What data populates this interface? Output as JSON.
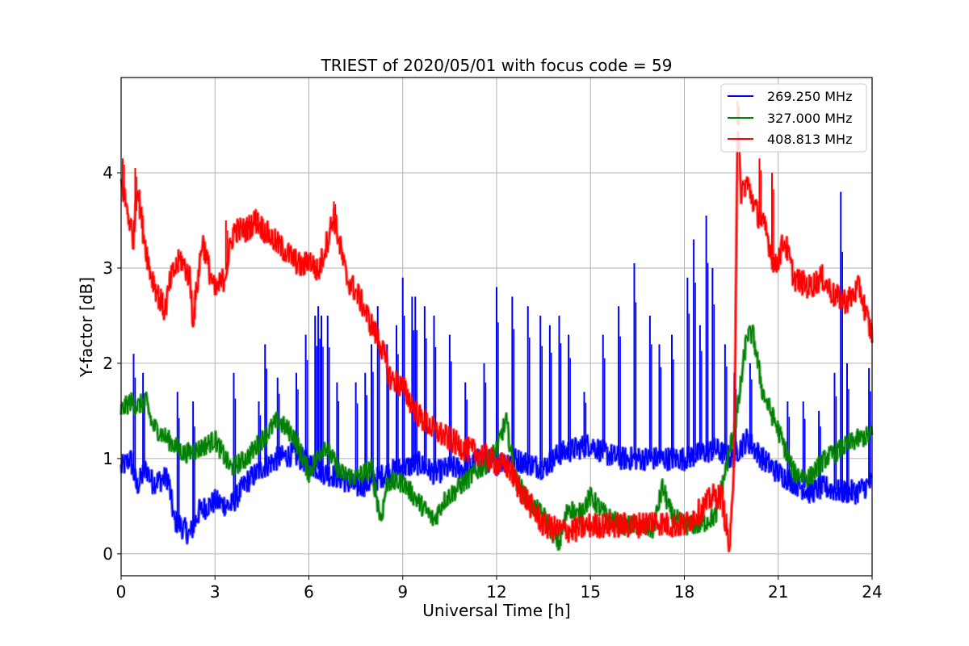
{
  "chart_data": {
    "type": "line",
    "title": "TRIEST of 2020/05/01 with focus code = 59",
    "xlabel": "Universal Time [h]",
    "ylabel": "Y-factor [dB]",
    "xlim": [
      0,
      24
    ],
    "ylim": [
      -0.23,
      5.0
    ],
    "xticks": [
      0,
      3,
      6,
      9,
      12,
      15,
      18,
      21,
      24
    ],
    "yticks": [
      0,
      1,
      2,
      3,
      4
    ],
    "grid": true,
    "legend_position": "top-right",
    "series": [
      {
        "name": "269.250 MHz",
        "color": "#0000ff",
        "x": [
          0,
          0.3,
          0.5,
          0.8,
          1.0,
          1.5,
          1.7,
          1.9,
          2.2,
          2.5,
          3.0,
          3.5,
          4.0,
          4.5,
          5.0,
          5.5,
          6.0,
          6.5,
          7.0,
          7.5,
          8.0,
          8.5,
          9.0,
          9.5,
          10.0,
          10.5,
          11.0,
          11.5,
          12.0,
          12.5,
          13.0,
          13.5,
          14.0,
          14.5,
          15.0,
          15.5,
          16.0,
          16.5,
          17.0,
          17.5,
          18.0,
          18.5,
          19.0,
          19.5,
          20.0,
          20.5,
          21.0,
          21.5,
          22.0,
          22.5,
          23.0,
          23.5,
          24.0
        ],
        "y": [
          0.9,
          1.0,
          0.7,
          0.9,
          0.75,
          0.8,
          0.35,
          0.3,
          0.2,
          0.45,
          0.55,
          0.5,
          0.75,
          0.9,
          1.0,
          1.05,
          0.95,
          0.85,
          0.8,
          0.7,
          0.75,
          0.85,
          0.9,
          0.95,
          0.85,
          0.9,
          0.9,
          1.0,
          0.95,
          1.0,
          0.95,
          0.9,
          1.05,
          1.1,
          1.15,
          1.05,
          1.0,
          1.0,
          1.0,
          1.0,
          1.0,
          1.05,
          1.1,
          1.0,
          1.2,
          1.0,
          0.85,
          0.75,
          0.65,
          0.7,
          0.65,
          0.65,
          0.75
        ],
        "spikes": [
          [
            0.4,
            2.1
          ],
          [
            0.7,
            1.9
          ],
          [
            1.8,
            1.7
          ],
          [
            2.3,
            1.6
          ],
          [
            3.6,
            1.9
          ],
          [
            4.4,
            1.6
          ],
          [
            4.6,
            2.2
          ],
          [
            5.0,
            1.85
          ],
          [
            5.6,
            1.9
          ],
          [
            5.9,
            2.3
          ],
          [
            6.2,
            2.5
          ],
          [
            6.3,
            2.6
          ],
          [
            6.4,
            2.5
          ],
          [
            6.6,
            2.5
          ],
          [
            6.9,
            1.8
          ],
          [
            7.5,
            1.8
          ],
          [
            7.8,
            1.9
          ],
          [
            8.0,
            2.2
          ],
          [
            8.2,
            2.6
          ],
          [
            8.5,
            2.2
          ],
          [
            8.8,
            2.4
          ],
          [
            9.0,
            2.9
          ],
          [
            9.3,
            2.7
          ],
          [
            9.4,
            2.7
          ],
          [
            9.7,
            2.6
          ],
          [
            10.0,
            2.5
          ],
          [
            10.5,
            2.3
          ],
          [
            11.0,
            1.8
          ],
          [
            11.6,
            2.0
          ],
          [
            12.0,
            2.8
          ],
          [
            12.5,
            2.7
          ],
          [
            13.0,
            2.6
          ],
          [
            13.4,
            2.5
          ],
          [
            13.7,
            2.4
          ],
          [
            14.0,
            2.5
          ],
          [
            14.3,
            2.3
          ],
          [
            14.8,
            1.7
          ],
          [
            15.4,
            2.3
          ],
          [
            15.9,
            2.6
          ],
          [
            16.4,
            3.05
          ],
          [
            16.9,
            2.5
          ],
          [
            17.2,
            2.2
          ],
          [
            17.6,
            2.3
          ],
          [
            18.1,
            2.9
          ],
          [
            18.3,
            3.3
          ],
          [
            18.5,
            2.4
          ],
          [
            18.7,
            3.55
          ],
          [
            18.9,
            3.0
          ],
          [
            19.3,
            2.2
          ],
          [
            19.6,
            1.9
          ],
          [
            20.1,
            2.0
          ],
          [
            21.3,
            1.6
          ],
          [
            21.8,
            1.6
          ],
          [
            22.3,
            1.5
          ],
          [
            22.8,
            1.9
          ],
          [
            23.0,
            3.8
          ],
          [
            23.2,
            2.0
          ],
          [
            23.9,
            1.95
          ]
        ]
      },
      {
        "name": "327.000 MHz",
        "color": "#008000",
        "x": [
          0,
          0.3,
          0.5,
          0.8,
          1.0,
          1.5,
          2.0,
          2.5,
          3.0,
          3.5,
          4.0,
          4.5,
          5.0,
          5.5,
          6.0,
          6.5,
          7.0,
          7.5,
          8.0,
          8.3,
          8.5,
          9.0,
          9.5,
          10.0,
          10.3,
          10.8,
          11.3,
          11.7,
          12.0,
          12.3,
          12.6,
          13.0,
          13.5,
          14.0,
          14.3,
          14.6,
          15.0,
          15.5,
          16.0,
          16.5,
          17.0,
          17.3,
          17.6,
          18.0,
          18.5,
          19.0,
          19.4,
          19.7,
          20.0,
          20.2,
          20.5,
          21.0,
          21.5,
          22.0,
          22.5,
          23.0,
          23.5,
          24.0
        ],
        "y": [
          1.5,
          1.6,
          1.55,
          1.6,
          1.35,
          1.2,
          1.05,
          1.1,
          1.2,
          0.9,
          1.0,
          1.2,
          1.4,
          1.25,
          0.85,
          1.15,
          0.85,
          0.8,
          0.9,
          0.35,
          0.75,
          0.75,
          0.55,
          0.35,
          0.55,
          0.7,
          0.85,
          0.95,
          1.1,
          1.4,
          0.8,
          0.55,
          0.4,
          0.1,
          0.5,
          0.4,
          0.6,
          0.4,
          0.3,
          0.3,
          0.25,
          0.7,
          0.4,
          0.3,
          0.3,
          0.4,
          1.0,
          1.5,
          2.3,
          2.3,
          1.7,
          1.3,
          0.85,
          0.8,
          1.0,
          1.1,
          1.2,
          1.25
        ]
      },
      {
        "name": "408.813 MHz",
        "color": "#ff0000",
        "x": [
          0,
          0.2,
          0.4,
          0.5,
          0.7,
          0.9,
          1.2,
          1.4,
          1.6,
          1.9,
          2.2,
          2.3,
          2.6,
          2.8,
          3.0,
          3.3,
          3.6,
          4.0,
          4.3,
          4.7,
          5.0,
          5.5,
          5.8,
          6.0,
          6.3,
          6.6,
          6.8,
          7.2,
          7.6,
          8.0,
          8.3,
          8.6,
          9.0,
          9.5,
          10.0,
          10.5,
          11.0,
          11.5,
          12.0,
          12.4,
          12.7,
          13.0,
          13.5,
          14.0,
          14.5,
          15.0,
          15.5,
          16.0,
          16.5,
          17.0,
          17.5,
          18.0,
          18.5,
          18.9,
          19.2,
          19.4,
          19.45,
          19.55,
          19.6,
          19.7,
          19.8,
          20.0,
          20.3,
          20.6,
          20.9,
          21.2,
          21.5,
          22.0,
          22.4,
          22.8,
          23.2,
          23.6,
          23.9,
          24.0
        ],
        "y": [
          3.9,
          3.6,
          3.3,
          3.9,
          3.4,
          3.0,
          2.7,
          2.55,
          2.9,
          3.1,
          2.9,
          2.45,
          3.3,
          3.0,
          2.75,
          2.9,
          3.4,
          3.4,
          3.5,
          3.35,
          3.25,
          3.1,
          3.0,
          3.1,
          2.95,
          3.3,
          3.55,
          2.9,
          2.7,
          2.4,
          2.2,
          1.85,
          1.75,
          1.45,
          1.3,
          1.2,
          1.1,
          1.05,
          0.95,
          0.9,
          0.7,
          0.55,
          0.3,
          0.25,
          0.25,
          0.3,
          0.3,
          0.3,
          0.3,
          0.35,
          0.3,
          0.3,
          0.45,
          0.6,
          0.6,
          0.15,
          0.05,
          0.6,
          1.3,
          4.5,
          3.8,
          3.9,
          3.6,
          3.4,
          3.0,
          3.3,
          2.9,
          2.8,
          2.9,
          2.7,
          2.65,
          2.8,
          2.4,
          2.3
        ],
        "spikes": [
          [
            0.05,
            4.15
          ],
          [
            0.45,
            4.05
          ],
          [
            3.35,
            3.5
          ],
          [
            4.3,
            3.6
          ],
          [
            6.8,
            3.7
          ],
          [
            19.7,
            4.75
          ],
          [
            20.4,
            4.15
          ],
          [
            20.8,
            4.0
          ]
        ]
      }
    ]
  }
}
